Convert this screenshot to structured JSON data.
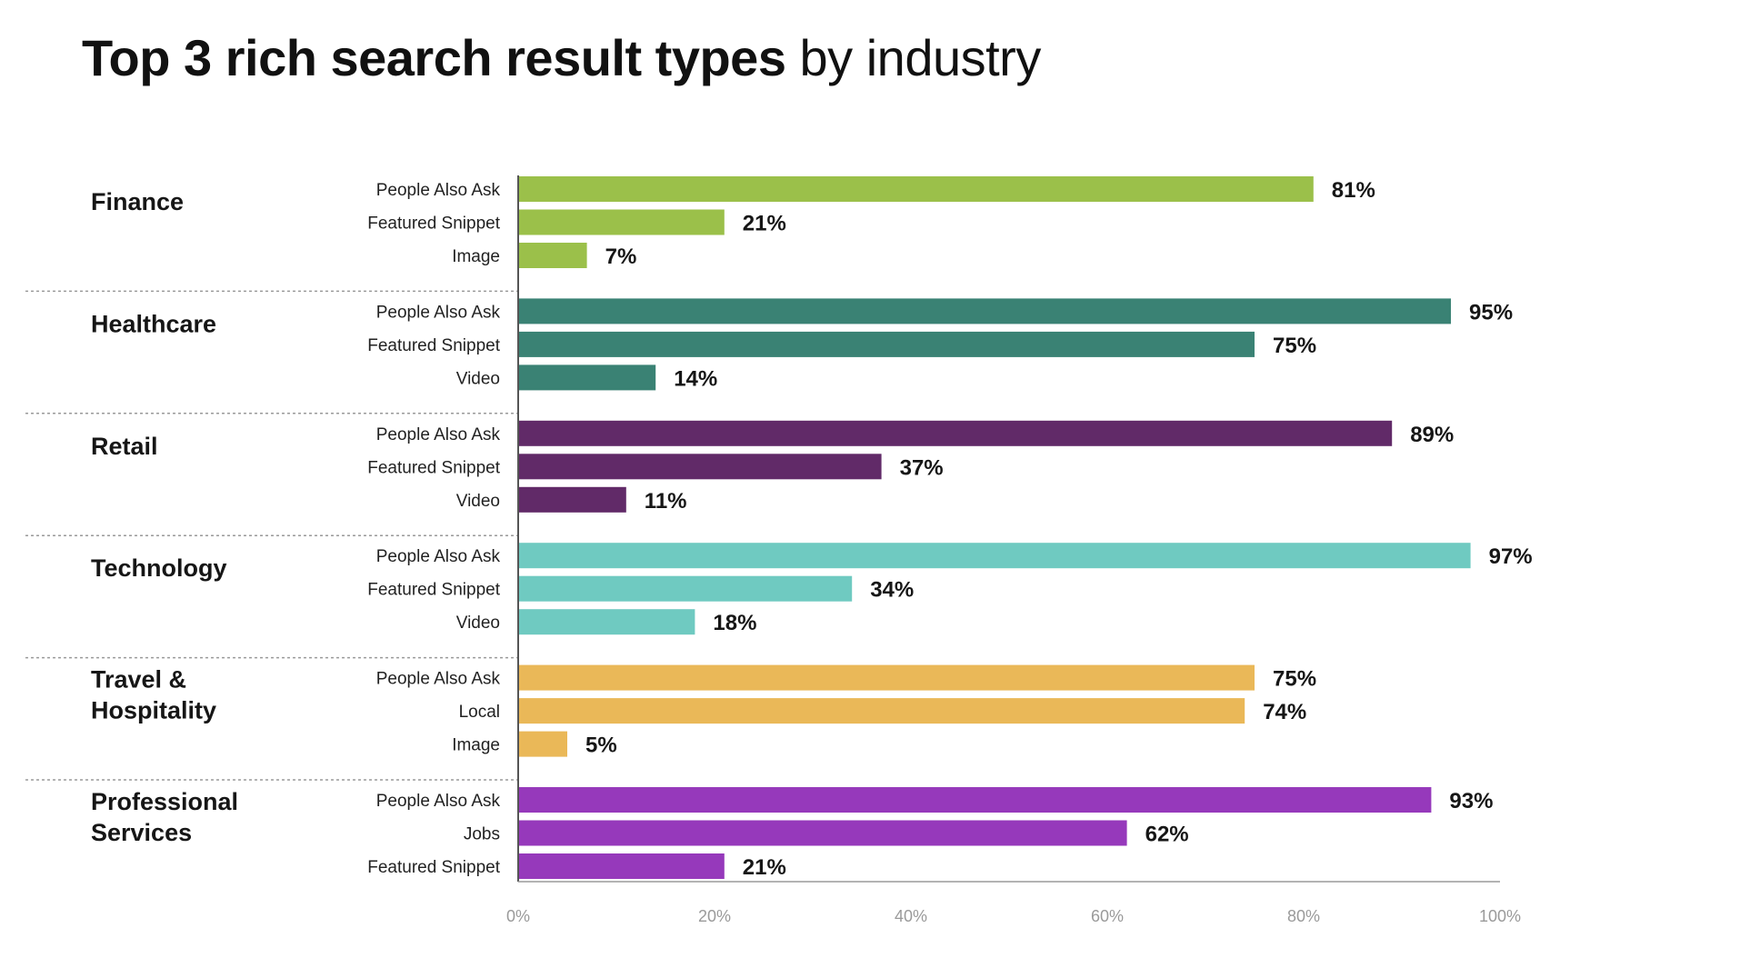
{
  "title": {
    "bold": "Top 3 rich search result types",
    "normal": "by industry"
  },
  "chart_data": {
    "type": "bar",
    "orientation": "horizontal",
    "title": "Top 3 rich search result types by industry",
    "xlabel": "",
    "ylabel": "",
    "xlim": [
      0,
      100
    ],
    "x_ticks": [
      "0%",
      "20%",
      "40%",
      "60%",
      "80%",
      "100%"
    ],
    "grid": false,
    "unit": "%",
    "groups": [
      {
        "name": "Finance",
        "label_lines": [
          "Finance"
        ],
        "color": "#9BC04A",
        "bars": [
          {
            "category": "People Also Ask",
            "value": 81,
            "label": "81%"
          },
          {
            "category": "Featured Snippet",
            "value": 21,
            "label": "21%"
          },
          {
            "category": "Image",
            "value": 7,
            "label": "7%"
          }
        ]
      },
      {
        "name": "Healthcare",
        "label_lines": [
          "Healthcare"
        ],
        "color": "#3A8274",
        "bars": [
          {
            "category": "People Also Ask",
            "value": 95,
            "label": "95%"
          },
          {
            "category": "Featured Snippet",
            "value": 75,
            "label": "75%"
          },
          {
            "category": "Video",
            "value": 14,
            "label": "14%"
          }
        ]
      },
      {
        "name": "Retail",
        "label_lines": [
          "Retail"
        ],
        "color": "#612A68",
        "bars": [
          {
            "category": "People Also Ask",
            "value": 89,
            "label": "89%"
          },
          {
            "category": "Featured Snippet",
            "value": 37,
            "label": "37%"
          },
          {
            "category": "Video",
            "value": 11,
            "label": "11%"
          }
        ]
      },
      {
        "name": "Technology",
        "label_lines": [
          "Technology"
        ],
        "color": "#6FCAC1",
        "bars": [
          {
            "category": "People Also Ask",
            "value": 97,
            "label": "97%"
          },
          {
            "category": "Featured Snippet",
            "value": 34,
            "label": "34%"
          },
          {
            "category": "Video",
            "value": 18,
            "label": "18%"
          }
        ]
      },
      {
        "name": "Travel & Hospitality",
        "label_lines": [
          "Travel &",
          "Hospitality"
        ],
        "color": "#EAB858",
        "bars": [
          {
            "category": "People Also Ask",
            "value": 75,
            "label": "75%"
          },
          {
            "category": "Local",
            "value": 74,
            "label": "74%"
          },
          {
            "category": "Image",
            "value": 5,
            "label": "5%"
          }
        ]
      },
      {
        "name": "Professional Services",
        "label_lines": [
          "Professional",
          "Services"
        ],
        "color": "#9639BB",
        "bars": [
          {
            "category": "People Also Ask",
            "value": 93,
            "label": "93%"
          },
          {
            "category": "Jobs",
            "value": 62,
            "label": "62%"
          },
          {
            "category": "Featured Snippet",
            "value": 21,
            "label": "21%"
          }
        ]
      }
    ]
  }
}
